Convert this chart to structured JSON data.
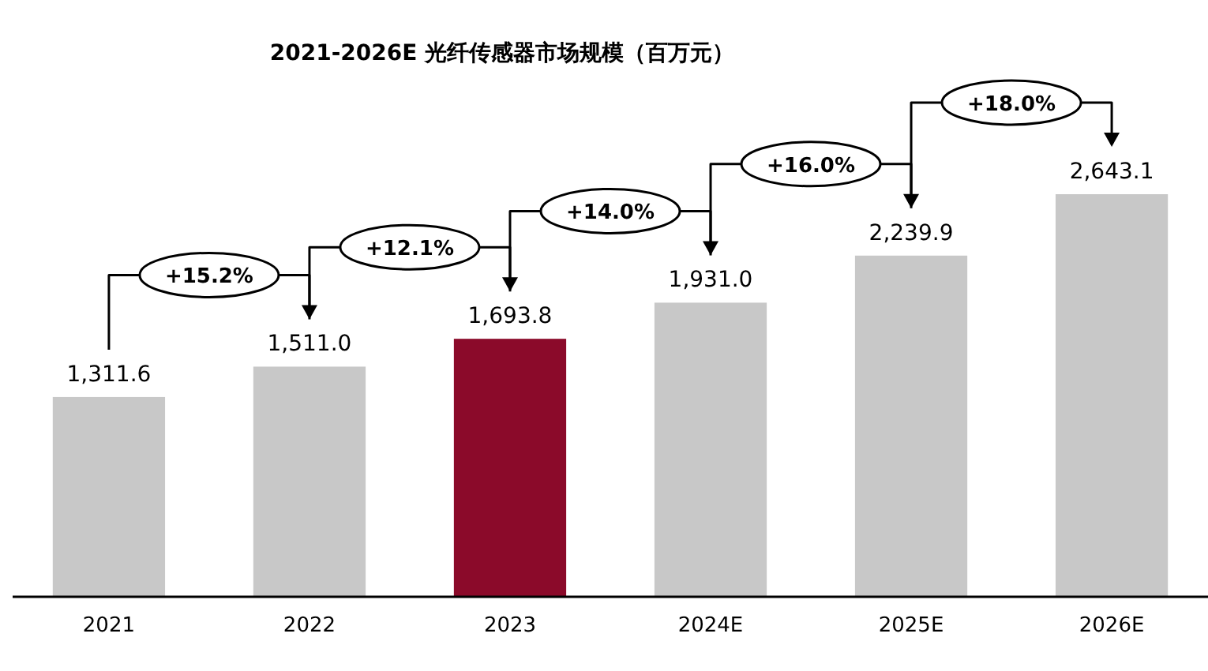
{
  "chart_data": {
    "type": "bar",
    "title": "2021-2026E 光纤传感器市场规模（百万元）",
    "categories": [
      "2021",
      "2022",
      "2023",
      "2024E",
      "2025E",
      "2026E"
    ],
    "values": [
      1311.6,
      1511.0,
      1693.8,
      1931.0,
      2239.9,
      2643.1
    ],
    "colors": [
      "#c8c8c8",
      "#c8c8c8",
      "#8b0a2a",
      "#c8c8c8",
      "#c8c8c8",
      "#c8c8c8"
    ],
    "value_labels": [
      "1,311.6",
      "1,511.0",
      "1,693.8",
      "1,931.0",
      "2,239.9",
      "2,643.1"
    ],
    "annotations": [
      "+15.2%",
      "+12.1%",
      "+14.0%",
      "+16.0%",
      "+18.0%"
    ]
  }
}
